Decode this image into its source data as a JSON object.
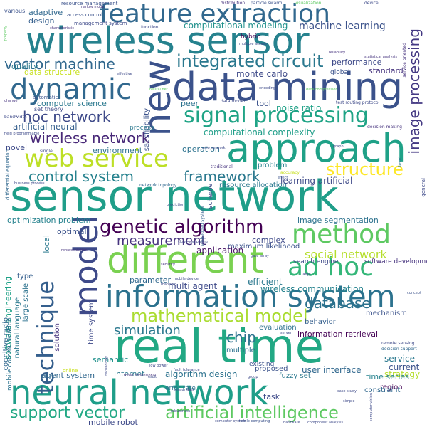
{
  "words": [
    {
      "text": "sensor network",
      "color": "#1f9e89"
    },
    {
      "text": "real time",
      "color": "#22a884"
    },
    {
      "text": "neural network",
      "color": "#1f9e89"
    },
    {
      "text": "wireless sensor",
      "color": "#26828e"
    },
    {
      "text": "data mining",
      "color": "#3b528b"
    },
    {
      "text": "approach",
      "color": "#1fa187"
    },
    {
      "text": "different",
      "color": "#7ad151"
    },
    {
      "text": "information system",
      "color": "#2c728e"
    },
    {
      "text": "model",
      "color": "#3e4a89"
    },
    {
      "text": "feature extraction",
      "color": "#31688e"
    },
    {
      "text": "dynamic",
      "color": "#31688e"
    },
    {
      "text": "new",
      "color": "#3b528b"
    },
    {
      "text": "method",
      "color": "#5ec962"
    },
    {
      "text": "web service",
      "color": "#bddf26"
    },
    {
      "text": "technique",
      "color": "#355f8d"
    },
    {
      "text": "ad hoc",
      "color": "#35b779"
    },
    {
      "text": "genetic algorithm",
      "color": "#440154"
    },
    {
      "text": "signal processing",
      "color": "#20a486"
    },
    {
      "text": "artificial intelligence",
      "color": "#5ec962"
    },
    {
      "text": "support vector",
      "color": "#22a884"
    },
    {
      "text": "integrated circuit",
      "color": "#2a788e"
    },
    {
      "text": "control system",
      "color": "#26828e"
    },
    {
      "text": "framework",
      "color": "#2a788e"
    },
    {
      "text": "structure",
      "color": "#fde725"
    },
    {
      "text": "vector machine",
      "color": "#31688e"
    },
    {
      "text": "hoc network",
      "color": "#3e4a89"
    },
    {
      "text": "wireless network",
      "color": "#482878"
    },
    {
      "text": "mathematical model",
      "color": "#aadc32"
    },
    {
      "text": "image processing",
      "color": "#443983"
    },
    {
      "text": "simulation",
      "color": "#2a788e"
    },
    {
      "text": "database",
      "color": "#2c728e"
    },
    {
      "text": "chip",
      "color": "#2c728e"
    },
    {
      "text": "measurement",
      "color": "#46337e"
    },
    {
      "text": "social network",
      "color": "#b5de2b"
    },
    {
      "text": "machine learning",
      "color": "#3b528b"
    },
    {
      "text": "computational modeling",
      "color": "#21918c"
    },
    {
      "text": "monte carlo",
      "color": "#3e4a89"
    },
    {
      "text": "noise ratio",
      "color": "#1fa187"
    },
    {
      "text": "computational complexity",
      "color": "#1f9e89"
    },
    {
      "text": "learning artificial",
      "color": "#3e4a89"
    },
    {
      "text": "computer science",
      "color": "#2a788e"
    },
    {
      "text": "artificial neural",
      "color": "#355f8d"
    },
    {
      "text": "optimization problem",
      "color": "#26828e"
    },
    {
      "text": "image segmentation",
      "color": "#2c728e"
    },
    {
      "text": "application",
      "color": "#471365"
    },
    {
      "text": "multi agent",
      "color": "#3e4a89"
    },
    {
      "text": "parameter",
      "color": "#31688e"
    },
    {
      "text": "efficient",
      "color": "#2a788e"
    },
    {
      "text": "wireless communication",
      "color": "#26828e"
    },
    {
      "text": "software engineering",
      "color": "#1fa187"
    },
    {
      "text": "evaluation",
      "color": "#2c728e"
    },
    {
      "text": "behavior",
      "color": "#355f8d"
    },
    {
      "text": "information retrieval",
      "color": "#440154"
    },
    {
      "text": "mechanism",
      "color": "#3b528b"
    },
    {
      "text": "user interface",
      "color": "#31688e"
    },
    {
      "text": "service",
      "color": "#2a788e"
    },
    {
      "text": "current",
      "color": "#3b528b"
    },
    {
      "text": "strategy",
      "color": "#b5de2b"
    },
    {
      "text": "algorithm design",
      "color": "#2c728e"
    },
    {
      "text": "internet",
      "color": "#2a788e"
    },
    {
      "text": "agent system",
      "color": "#31688e"
    },
    {
      "text": "time series",
      "color": "#26828e"
    },
    {
      "text": "fuzzy set",
      "color": "#2a788e"
    },
    {
      "text": "proposed",
      "color": "#3b528b"
    },
    {
      "text": "multiple",
      "color": "#2c728e"
    },
    {
      "text": "semantic",
      "color": "#21918c"
    },
    {
      "text": "mobile robot",
      "color": "#3e4a89"
    },
    {
      "text": "task",
      "color": "#3e4a89"
    },
    {
      "text": "region",
      "color": "#440154"
    },
    {
      "text": "constraint",
      "color": "#31688e"
    },
    {
      "text": "quality",
      "color": "#2a788e"
    },
    {
      "text": "adaptive",
      "color": "#31688e"
    },
    {
      "text": "design",
      "color": "#355f8d"
    },
    {
      "text": "performance",
      "color": "#3e4a89"
    },
    {
      "text": "standard",
      "color": "#46337e"
    },
    {
      "text": "data structure",
      "color": "#c8e020"
    },
    {
      "text": "tool",
      "color": "#3b528b"
    },
    {
      "text": "peer",
      "color": "#2c728e"
    },
    {
      "text": "environment",
      "color": "#2c728e"
    },
    {
      "text": "operation",
      "color": "#2c728e"
    },
    {
      "text": "novel",
      "color": "#3e4a89"
    },
    {
      "text": "problem",
      "color": "#26828e"
    },
    {
      "text": "optimal",
      "color": "#3b528b"
    },
    {
      "text": "complex",
      "color": "#3e4a89"
    },
    {
      "text": "local",
      "color": "#2a788e"
    },
    {
      "text": "type",
      "color": "#355f8d"
    },
    {
      "text": "large scale",
      "color": "#2c728e"
    },
    {
      "text": "natural language",
      "color": "#2a788e"
    },
    {
      "text": "time system",
      "color": "#3e4a89"
    },
    {
      "text": "solution",
      "color": "#46337e"
    },
    {
      "text": "cognitive radio",
      "color": "#31688e"
    },
    {
      "text": "mobile communication",
      "color": "#2c728e"
    },
    {
      "text": "satisfiability",
      "color": "#3b528b"
    },
    {
      "text": "resource allocation",
      "color": "#2a788e"
    },
    {
      "text": "network topology",
      "color": "#31688e"
    },
    {
      "text": "scheme",
      "color": "#3e4a89"
    },
    {
      "text": "embedded system",
      "color": "#355f8d"
    },
    {
      "text": "maximum likelihood",
      "color": "#3b528b"
    },
    {
      "text": "search engine",
      "color": "#3e4a89"
    },
    {
      "text": "software development",
      "color": "#46337e"
    },
    {
      "text": "remote sensing",
      "color": "#3e4a89"
    },
    {
      "text": "decision support",
      "color": "#31688e"
    },
    {
      "text": "existing",
      "color": "#3b528b"
    },
    {
      "text": "error rate",
      "color": "#2c728e"
    },
    {
      "text": "hybrid",
      "color": "#440154"
    },
    {
      "text": "global",
      "color": "#3b528b"
    },
    {
      "text": "process",
      "color": "#2a788e"
    },
    {
      "text": "set theory",
      "color": "#3e4a89"
    },
    {
      "text": "automatic",
      "color": "#3b528b"
    },
    {
      "text": "various",
      "color": "#3b528b"
    },
    {
      "text": "resource management",
      "color": "#3b528b"
    },
    {
      "text": "access control",
      "color": "#3b528b"
    },
    {
      "text": "management system",
      "color": "#3e4a89"
    },
    {
      "text": "function",
      "color": "#3e4a89"
    },
    {
      "text": "distribution",
      "color": "#46337e"
    },
    {
      "text": "particle swarm",
      "color": "#3b528b"
    },
    {
      "text": "visualization",
      "color": "#5ec962"
    },
    {
      "text": "device",
      "color": "#3e4a89"
    },
    {
      "text": "service oriented",
      "color": "#46337e"
    },
    {
      "text": "traditional",
      "color": "#46337e"
    },
    {
      "text": "single",
      "color": "#3e4a89"
    },
    {
      "text": "level",
      "color": "#2a788e"
    },
    {
      "text": "general",
      "color": "#3e4a89"
    },
    {
      "text": "bandwidth",
      "color": "#3e4a89"
    },
    {
      "text": "differential equation",
      "color": "#31688e"
    },
    {
      "text": "business process",
      "color": "#3e4a89"
    },
    {
      "text": "prediction",
      "color": "#3e4a89"
    },
    {
      "text": "effect",
      "color": "#3b528b"
    },
    {
      "text": "concept",
      "color": "#3b528b"
    },
    {
      "text": "robustness",
      "color": "#3e4a89"
    },
    {
      "text": "hardware",
      "color": "#3e4a89"
    },
    {
      "text": "component analysis",
      "color": "#3e4a89"
    },
    {
      "text": "mobile computing",
      "color": "#3b528b"
    },
    {
      "text": "three dimensional",
      "color": "#46337e"
    },
    {
      "text": "case study",
      "color": "#3e4a89"
    },
    {
      "text": "simple",
      "color": "#3e4a89"
    },
    {
      "text": "computer vision",
      "color": "#3e4a89"
    },
    {
      "text": "representation",
      "color": "#46337e"
    },
    {
      "text": "characteristic",
      "color": "#46337e"
    },
    {
      "text": "markov model",
      "color": "#46337e"
    },
    {
      "text": "statistical analysis",
      "color": "#46337e"
    },
    {
      "text": "test routing protocol",
      "color": "#3e4a89"
    },
    {
      "text": "decision making",
      "color": "#46337e"
    },
    {
      "text": "reliability",
      "color": "#46337e"
    },
    {
      "text": "encoding",
      "color": "#3e4a89"
    },
    {
      "text": "data model",
      "color": "#3e4a89"
    },
    {
      "text": "property",
      "color": "#5ec962"
    },
    {
      "text": "effective",
      "color": "#3e4a89"
    },
    {
      "text": "neural net",
      "color": "#5ec962"
    },
    {
      "text": "change",
      "color": "#46337e"
    },
    {
      "text": "multiple access",
      "color": "#3e4a89"
    },
    {
      "text": "data compression",
      "color": "#5ec962"
    },
    {
      "text": "field programmable",
      "color": "#3e4a89"
    },
    {
      "text": "security",
      "color": "#46337e"
    },
    {
      "text": "mapping",
      "color": "#3e4a89"
    },
    {
      "text": "large",
      "color": "#3e4a89"
    },
    {
      "text": "server",
      "color": "#3e4a89"
    },
    {
      "text": "online",
      "color": "#c8e020"
    },
    {
      "text": "group",
      "color": "#3e4a89"
    },
    {
      "text": "technology",
      "color": "#3e4a89"
    },
    {
      "text": "result",
      "color": "#3e4a89"
    },
    {
      "text": "low power",
      "color": "#3e4a89"
    },
    {
      "text": "cloud computing",
      "color": "#3e4a89"
    },
    {
      "text": "sensor data",
      "color": "#3e4a89"
    },
    {
      "text": "mobile device",
      "color": "#3e4a89"
    },
    {
      "text": "fault tolerance",
      "color": "#3e4a89"
    },
    {
      "text": "computer system",
      "color": "#3e4a89"
    },
    {
      "text": "accuracy",
      "color": "#c8e020"
    },
    {
      "text": "graph",
      "color": "#3e4a89"
    },
    {
      "text": "radio network",
      "color": "#3e4a89"
    },
    {
      "text": "gate array",
      "color": "#3e4a89"
    }
  ]
}
